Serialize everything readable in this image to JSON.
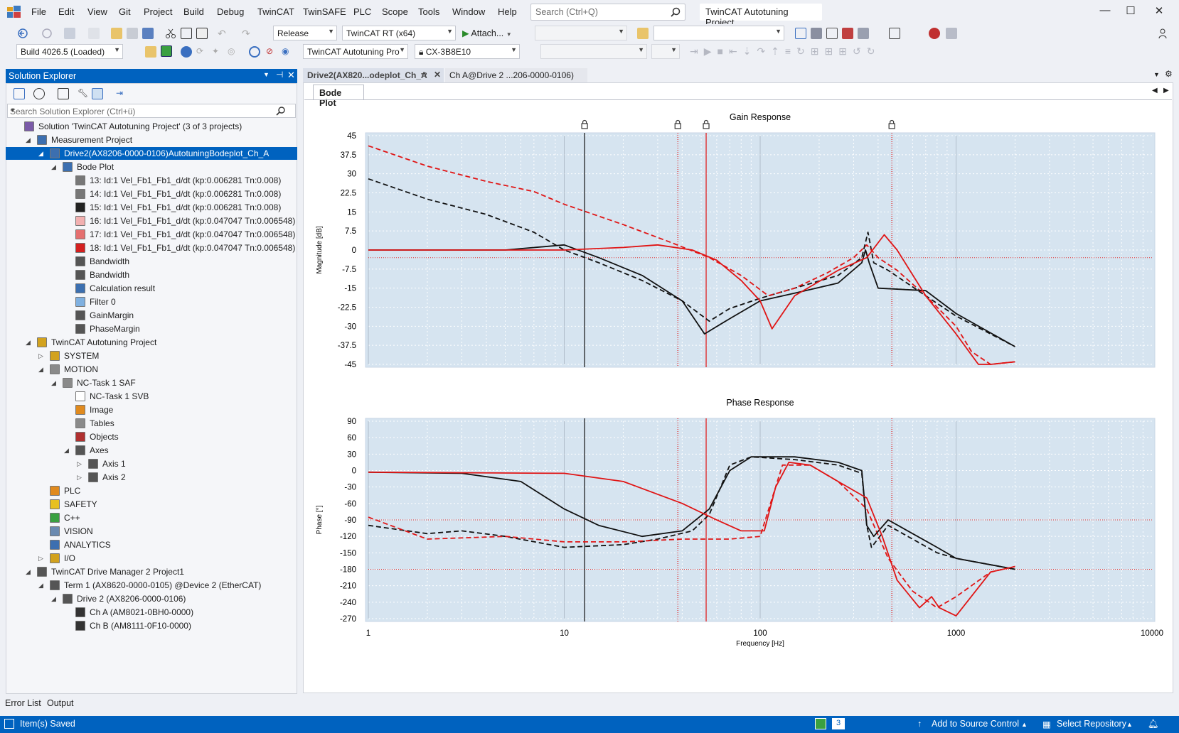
{
  "menu": [
    "File",
    "Edit",
    "View",
    "Git",
    "Project",
    "Build",
    "Debug",
    "TwinCAT",
    "TwinSAFE",
    "PLC",
    "Scope",
    "Tools",
    "Window",
    "Help"
  ],
  "search": {
    "placeholder": "Search (Ctrl+Q)"
  },
  "project_title": "TwinCAT Autotuning Project",
  "toolbar": {
    "config": "Release",
    "platform": "TwinCAT RT (x64)",
    "attach": "Attach...",
    "build": "Build 4026.5 (Loaded)",
    "project_combo": "TwinCAT Autotuning Pro",
    "target": "CX-3B8E10"
  },
  "solution_explorer": {
    "title": "Solution Explorer",
    "search_placeholder": "Search Solution Explorer (Ctrl+ü)",
    "items": [
      {
        "label": "Solution 'TwinCAT Autotuning Project' (3 of 3 projects)",
        "indent": 0,
        "tw": "",
        "icon": "solution-icon",
        "color": "#7a5aa8"
      },
      {
        "label": "Measurement Project",
        "indent": 1,
        "tw": "◢",
        "icon": "measurement-project-icon",
        "color": "#3c6fb0"
      },
      {
        "label": "Drive2(AX8206-0000-0106)AutotuningBodeplot_Ch_A",
        "indent": 2,
        "tw": "◢",
        "icon": "bodeplot-icon",
        "color": "#3c6fb0",
        "selected": true
      },
      {
        "label": "Bode Plot",
        "indent": 3,
        "tw": "◢",
        "icon": "chart-icon",
        "color": "#3c6fb0"
      },
      {
        "label": "13: Id:1 Vel_Fb1_Fb1_d/dt (kp:0.006281 Tn:0.008)",
        "indent": 4,
        "tw": "",
        "icon": "channel-icon",
        "color": "#777"
      },
      {
        "label": "14: Id:1 Vel_Fb1_Fb1_d/dt (kp:0.006281 Tn:0.008)",
        "indent": 4,
        "tw": "",
        "icon": "channel-icon",
        "color": "#777"
      },
      {
        "label": "15: Id:1 Vel_Fb1_Fb1_d/dt (kp:0.006281 Tn:0.008)",
        "indent": 4,
        "tw": "",
        "icon": "channel-icon",
        "color": "#222"
      },
      {
        "label": "16: Id:1 Vel_Fb1_Fb1_d/dt (kp:0.047047 Tn:0.006548)",
        "indent": 4,
        "tw": "",
        "icon": "channel-icon",
        "color": "#f2b0b0"
      },
      {
        "label": "17: Id:1 Vel_Fb1_Fb1_d/dt (kp:0.047047 Tn:0.006548)",
        "indent": 4,
        "tw": "",
        "icon": "channel-icon",
        "color": "#e57070"
      },
      {
        "label": "18: Id:1 Vel_Fb1_Fb1_d/dt (kp:0.047047 Tn:0.006548)",
        "indent": 4,
        "tw": "",
        "icon": "channel-icon",
        "color": "#d42020"
      },
      {
        "label": "Bandwidth",
        "indent": 4,
        "tw": "",
        "icon": "marker-icon",
        "color": "#555"
      },
      {
        "label": "Bandwidth",
        "indent": 4,
        "tw": "",
        "icon": "marker-icon",
        "color": "#555"
      },
      {
        "label": "Calculation result",
        "indent": 4,
        "tw": "",
        "icon": "calc-icon",
        "color": "#3c6fb0"
      },
      {
        "label": "Filter 0",
        "indent": 4,
        "tw": "",
        "icon": "filter-icon",
        "color": "#7fb0e0"
      },
      {
        "label": "GainMargin",
        "indent": 4,
        "tw": "",
        "icon": "marker-icon",
        "color": "#555"
      },
      {
        "label": "PhaseMargin",
        "indent": 4,
        "tw": "",
        "icon": "marker-icon",
        "color": "#555"
      },
      {
        "label": "TwinCAT Autotuning Project",
        "indent": 1,
        "tw": "◢",
        "icon": "twincat-project-icon",
        "color": "#d2a21e"
      },
      {
        "label": "SYSTEM",
        "indent": 2,
        "tw": "▷",
        "icon": "system-icon",
        "color": "#d2a21e"
      },
      {
        "label": "MOTION",
        "indent": 2,
        "tw": "◢",
        "icon": "motion-icon",
        "color": "#8a8a8a"
      },
      {
        "label": "NC-Task 1 SAF",
        "indent": 3,
        "tw": "◢",
        "icon": "nc-task-icon",
        "color": "#8a8a8a"
      },
      {
        "label": "NC-Task 1 SVB",
        "indent": 4,
        "tw": "",
        "icon": "nc-svb-icon",
        "color": "#ffffff"
      },
      {
        "label": "Image",
        "indent": 4,
        "tw": "",
        "icon": "image-icon",
        "color": "#e08a1e"
      },
      {
        "label": "Tables",
        "indent": 4,
        "tw": "",
        "icon": "tables-icon",
        "color": "#8a8a8a"
      },
      {
        "label": "Objects",
        "indent": 4,
        "tw": "",
        "icon": "objects-icon",
        "color": "#b03030"
      },
      {
        "label": "Axes",
        "indent": 4,
        "tw": "◢",
        "icon": "axes-icon",
        "color": "#555"
      },
      {
        "label": "Axis 1",
        "indent": 5,
        "tw": "▷",
        "icon": "axis-icon",
        "color": "#555"
      },
      {
        "label": "Axis 2",
        "indent": 5,
        "tw": "▷",
        "icon": "axis-icon",
        "color": "#555"
      },
      {
        "label": "PLC",
        "indent": 2,
        "tw": "",
        "icon": "plc-icon",
        "color": "#e08a1e"
      },
      {
        "label": "SAFETY",
        "indent": 2,
        "tw": "",
        "icon": "safety-icon",
        "color": "#e8c020"
      },
      {
        "label": "C++",
        "indent": 2,
        "tw": "",
        "icon": "cpp-icon",
        "color": "#3aa040"
      },
      {
        "label": "VISION",
        "indent": 2,
        "tw": "",
        "icon": "vision-icon",
        "color": "#6a8ab0"
      },
      {
        "label": "ANALYTICS",
        "indent": 2,
        "tw": "",
        "icon": "analytics-icon",
        "color": "#3c6fb0"
      },
      {
        "label": "I/O",
        "indent": 2,
        "tw": "▷",
        "icon": "io-icon",
        "color": "#d2a21e"
      },
      {
        "label": "TwinCAT Drive Manager 2 Project1",
        "indent": 1,
        "tw": "◢",
        "icon": "drive-manager-icon",
        "color": "#555"
      },
      {
        "label": "Term 1 (AX8620-0000-0105) @Device 2 (EtherCAT)",
        "indent": 2,
        "tw": "◢",
        "icon": "terminal-icon",
        "color": "#555"
      },
      {
        "label": "Drive 2 (AX8206-0000-0106)",
        "indent": 3,
        "tw": "◢",
        "icon": "drive-icon",
        "color": "#555"
      },
      {
        "label": "Ch A (AM8021-0BH0-0000)",
        "indent": 4,
        "tw": "",
        "icon": "motor-icon",
        "color": "#333"
      },
      {
        "label": "Ch B (AM8111-0F10-0000)",
        "indent": 4,
        "tw": "",
        "icon": "motor-icon",
        "color": "#333"
      }
    ]
  },
  "doc_tabs": [
    {
      "label": "Drive2(AX820...odeplot_Ch_A",
      "active": true
    },
    {
      "label": "Ch A@Drive 2 ...206-0000-0106)",
      "active": false
    }
  ],
  "bode_tab": "Bode Plot",
  "bottom_tabs": [
    "Error List",
    "Output"
  ],
  "status": {
    "left": "Item(s) Saved",
    "count": "3",
    "source_control": "Add to Source Control",
    "repository": "Select Repository"
  },
  "colors": {
    "accent": "#0062bf",
    "plot_bg": "#d6e4f0",
    "red": "#e01515",
    "black": "#111111"
  },
  "chart_data": [
    {
      "type": "line",
      "title": "Gain Response",
      "xlabel": "Frequency [Hz]",
      "ylabel": "Magnitude [dB]",
      "xscale": "log",
      "xlim": [
        1,
        10000
      ],
      "ylim": [
        -45,
        45
      ],
      "yticks": [
        45,
        37.5,
        30,
        22.5,
        15,
        7.5,
        0,
        -7.5,
        -15,
        -22.5,
        -30,
        -37.5,
        -45
      ],
      "xticks": [
        "1",
        "10",
        "100",
        "1000",
        "10000"
      ],
      "reference_line_y": -3,
      "marker_lines": [
        {
          "x": 12.7,
          "color": "black",
          "lock": true
        },
        {
          "x": 38,
          "color": "red-dotted",
          "lock": true
        },
        {
          "x": 53,
          "color": "red",
          "lock": true
        },
        {
          "x": 470,
          "color": "red-dotted",
          "lock": true
        }
      ],
      "series": [
        {
          "style": "black-dashed",
          "points": [
            [
              1,
              28
            ],
            [
              2,
              20
            ],
            [
              4,
              14
            ],
            [
              7,
              7
            ],
            [
              10,
              0
            ],
            [
              15,
              -5
            ],
            [
              25,
              -12
            ],
            [
              40,
              -20
            ],
            [
              55,
              -28
            ],
            [
              70,
              -23
            ],
            [
              100,
              -19
            ],
            [
              150,
              -15
            ],
            [
              250,
              -10
            ],
            [
              330,
              -3
            ],
            [
              355,
              7
            ],
            [
              380,
              -5
            ],
            [
              450,
              -8
            ],
            [
              700,
              -18
            ],
            [
              1000,
              -26
            ],
            [
              2000,
              -38
            ]
          ]
        },
        {
          "style": "red-dashed",
          "points": [
            [
              1,
              41
            ],
            [
              2,
              33
            ],
            [
              4,
              27
            ],
            [
              7,
              23
            ],
            [
              10,
              18
            ],
            [
              20,
              10
            ],
            [
              35,
              3
            ],
            [
              55,
              -3
            ],
            [
              80,
              -10
            ],
            [
              110,
              -18
            ],
            [
              150,
              -15
            ],
            [
              220,
              -9
            ],
            [
              300,
              -3
            ],
            [
              350,
              2
            ],
            [
              400,
              -3
            ],
            [
              500,
              -8
            ],
            [
              700,
              -18
            ],
            [
              1000,
              -30
            ],
            [
              1200,
              -40
            ],
            [
              1500,
              -45
            ],
            [
              2000,
              -44
            ]
          ]
        },
        {
          "style": "black",
          "points": [
            [
              1,
              0
            ],
            [
              5,
              0
            ],
            [
              10,
              2
            ],
            [
              15,
              -3
            ],
            [
              25,
              -10
            ],
            [
              40,
              -20
            ],
            [
              52,
              -33
            ],
            [
              70,
              -27
            ],
            [
              100,
              -20
            ],
            [
              150,
              -17
            ],
            [
              250,
              -13
            ],
            [
              330,
              -5
            ],
            [
              345,
              0
            ],
            [
              360,
              -5
            ],
            [
              400,
              -15
            ],
            [
              700,
              -16
            ],
            [
              1000,
              -25
            ],
            [
              2000,
              -38
            ]
          ]
        },
        {
          "style": "red",
          "points": [
            [
              1,
              0
            ],
            [
              10,
              0
            ],
            [
              20,
              1
            ],
            [
              30,
              2
            ],
            [
              45,
              0
            ],
            [
              60,
              -4
            ],
            [
              80,
              -12
            ],
            [
              100,
              -20
            ],
            [
              115,
              -31
            ],
            [
              150,
              -18
            ],
            [
              250,
              -8
            ],
            [
              350,
              -3
            ],
            [
              430,
              6
            ],
            [
              500,
              0
            ],
            [
              700,
              -18
            ],
            [
              1000,
              -33
            ],
            [
              1300,
              -45
            ],
            [
              1500,
              -45
            ],
            [
              2000,
              -44
            ]
          ]
        }
      ]
    },
    {
      "type": "line",
      "title": "Phase Response",
      "xlabel": "Frequency [Hz]",
      "ylabel": "Phase [°]",
      "xscale": "log",
      "xlim": [
        1,
        10000
      ],
      "ylim": [
        -270,
        90
      ],
      "yticks": [
        90,
        60,
        30,
        0,
        -30,
        -60,
        -90,
        -120,
        -150,
        -180,
        -210,
        -240,
        -270
      ],
      "xticks": [
        "1",
        "10",
        "100",
        "1000",
        "10000"
      ],
      "reference_lines_y": [
        -90,
        -180
      ],
      "marker_lines": [
        {
          "x": 12.7,
          "color": "black"
        },
        {
          "x": 38,
          "color": "red-dotted"
        },
        {
          "x": 53,
          "color": "red"
        },
        {
          "x": 470,
          "color": "red-dotted"
        }
      ],
      "series": [
        {
          "style": "black-dashed",
          "points": [
            [
              1,
              -100
            ],
            [
              2,
              -115
            ],
            [
              3,
              -110
            ],
            [
              5,
              -120
            ],
            [
              10,
              -140
            ],
            [
              20,
              -135
            ],
            [
              30,
              -125
            ],
            [
              45,
              -110
            ],
            [
              55,
              -80
            ],
            [
              70,
              10
            ],
            [
              90,
              25
            ],
            [
              150,
              20
            ],
            [
              250,
              10
            ],
            [
              330,
              -5
            ],
            [
              350,
              -100
            ],
            [
              370,
              -140
            ],
            [
              450,
              -100
            ],
            [
              800,
              -150
            ],
            [
              1000,
              -160
            ],
            [
              2000,
              -180
            ]
          ]
        },
        {
          "style": "red-dashed",
          "points": [
            [
              1,
              -85
            ],
            [
              2,
              -125
            ],
            [
              5,
              -120
            ],
            [
              10,
              -130
            ],
            [
              20,
              -130
            ],
            [
              40,
              -125
            ],
            [
              70,
              -125
            ],
            [
              100,
              -120
            ],
            [
              130,
              10
            ],
            [
              180,
              10
            ],
            [
              250,
              -20
            ],
            [
              350,
              -70
            ],
            [
              450,
              -160
            ],
            [
              600,
              -220
            ],
            [
              800,
              -250
            ],
            [
              1000,
              -230
            ],
            [
              1500,
              -185
            ],
            [
              2000,
              -175
            ]
          ]
        },
        {
          "style": "black",
          "points": [
            [
              1,
              -3
            ],
            [
              3,
              -5
            ],
            [
              6,
              -20
            ],
            [
              10,
              -70
            ],
            [
              15,
              -100
            ],
            [
              25,
              -120
            ],
            [
              40,
              -110
            ],
            [
              55,
              -70
            ],
            [
              70,
              0
            ],
            [
              90,
              25
            ],
            [
              150,
              25
            ],
            [
              250,
              15
            ],
            [
              330,
              0
            ],
            [
              350,
              -100
            ],
            [
              380,
              -120
            ],
            [
              450,
              -90
            ],
            [
              800,
              -140
            ],
            [
              1000,
              -160
            ],
            [
              2000,
              -180
            ]
          ]
        },
        {
          "style": "red",
          "points": [
            [
              1,
              -3
            ],
            [
              10,
              -5
            ],
            [
              20,
              -20
            ],
            [
              40,
              -60
            ],
            [
              60,
              -90
            ],
            [
              80,
              -110
            ],
            [
              105,
              -110
            ],
            [
              120,
              -30
            ],
            [
              140,
              15
            ],
            [
              180,
              10
            ],
            [
              250,
              -20
            ],
            [
              350,
              -50
            ],
            [
              420,
              -120
            ],
            [
              500,
              -200
            ],
            [
              650,
              -250
            ],
            [
              750,
              -230
            ],
            [
              820,
              -250
            ],
            [
              1000,
              -265
            ],
            [
              1500,
              -185
            ],
            [
              2000,
              -175
            ]
          ]
        }
      ]
    }
  ]
}
